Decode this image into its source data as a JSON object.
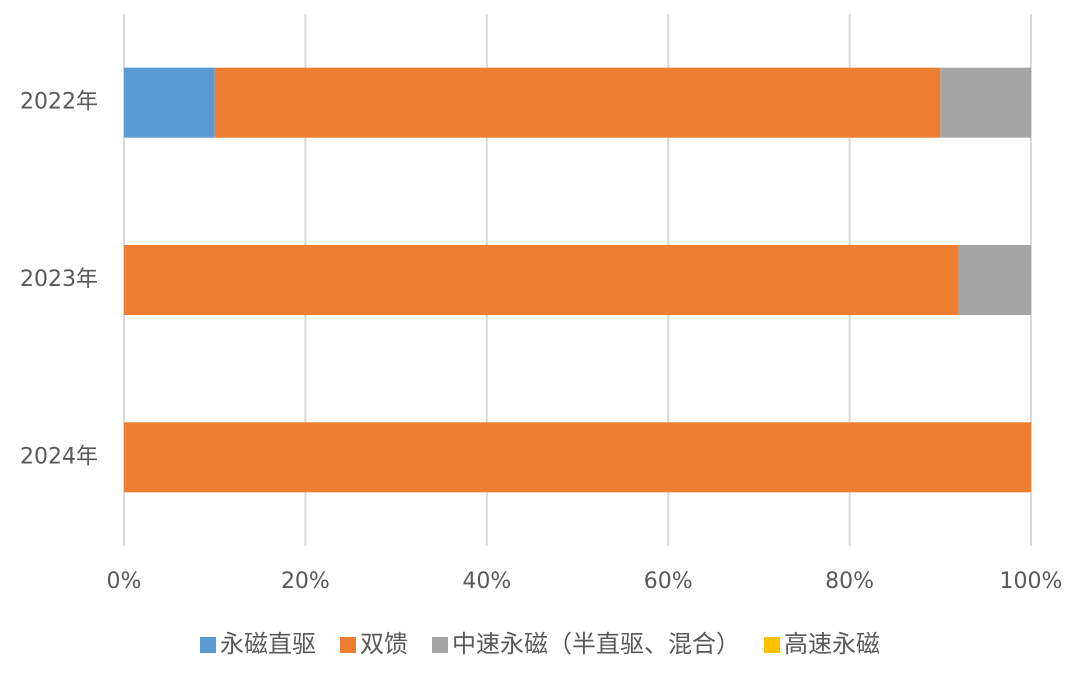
{
  "chart_data": {
    "type": "stacked-bar-horizontal",
    "categories": [
      "2022年",
      "2023年",
      "2024年"
    ],
    "series": [
      {
        "name": "永磁直驱",
        "color": "#5b9bd5",
        "values": [
          10,
          0,
          0
        ]
      },
      {
        "name": "双馈",
        "color": "#ed7d31",
        "values": [
          80,
          92,
          100
        ]
      },
      {
        "name": "中速永磁（半直驱、混合）",
        "color": "#a5a5a5",
        "values": [
          10,
          8,
          0
        ]
      },
      {
        "name": "高速永磁",
        "color": "#ffc000",
        "values": [
          0,
          0,
          0
        ]
      }
    ],
    "xlim": [
      0,
      100
    ],
    "xticks": [
      {
        "value": 0,
        "label": "0%"
      },
      {
        "value": 20,
        "label": "20%"
      },
      {
        "value": 40,
        "label": "40%"
      },
      {
        "value": 60,
        "label": "60%"
      },
      {
        "value": 80,
        "label": "80%"
      },
      {
        "value": 100,
        "label": "100%"
      }
    ],
    "grid": true,
    "legend": "bottom"
  }
}
